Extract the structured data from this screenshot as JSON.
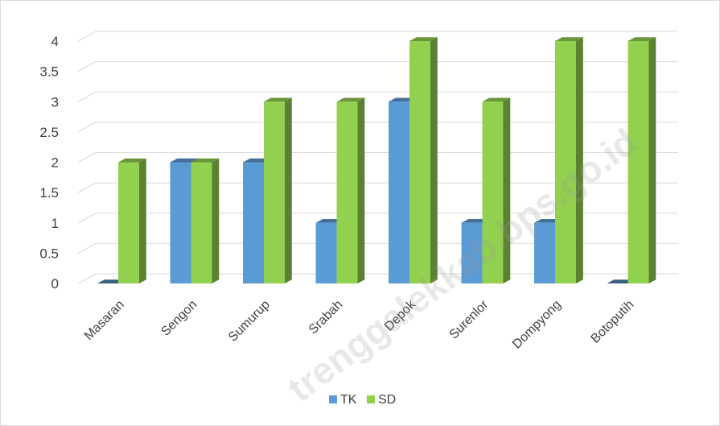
{
  "chart_data": {
    "type": "bar",
    "title": "",
    "xlabel": "",
    "ylabel": "",
    "categories": [
      "Masaran",
      "Sengon",
      "Sumurup",
      "Srabah",
      "Depok",
      "Surenlor",
      "Dompyong",
      "Botoputih"
    ],
    "series": [
      {
        "name": "TK",
        "values": [
          0,
          2,
          2,
          1,
          3,
          1,
          1,
          0
        ],
        "color": "#5b9bd5"
      },
      {
        "name": "SD",
        "values": [
          2,
          2,
          3,
          3,
          4,
          3,
          4,
          4
        ],
        "color": "#92d050"
      }
    ],
    "ylim": [
      0,
      4
    ],
    "yticks": [
      "0",
      "0.5",
      "1",
      "1.5",
      "2",
      "2.5",
      "3",
      "3.5",
      "4"
    ],
    "grid": true,
    "legend_position": "bottom",
    "bar_style": "3d-clustered"
  },
  "watermark": "trenggalekkab.bps.go.id"
}
